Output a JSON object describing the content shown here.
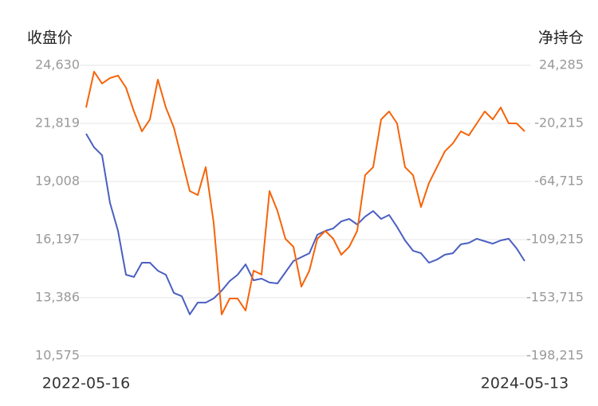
{
  "chart_data": {
    "type": "line",
    "y_label": "收盘价",
    "y2_label": "净持仓",
    "categories": [
      "2022-05-16",
      null,
      null,
      null,
      null,
      null,
      null,
      null,
      null,
      null,
      null,
      null,
      null,
      null,
      null,
      null,
      null,
      null,
      null,
      null,
      null,
      null,
      null,
      null,
      null,
      null,
      null,
      null,
      null,
      null,
      null,
      null,
      null,
      null,
      null,
      null,
      null,
      null,
      null,
      null,
      null,
      null,
      null,
      null,
      null,
      null,
      null,
      null,
      null,
      null,
      null,
      null,
      null,
      null,
      null,
      "2024-05-13"
    ],
    "series": [
      {
        "color": "#4a5fc1",
        "values": [
          21320,
          20660,
          20280,
          17970,
          16620,
          14500,
          14390,
          15080,
          15080,
          14690,
          14500,
          13620,
          13460,
          12580,
          13150,
          13150,
          13350,
          13730,
          14190,
          14500,
          15000,
          14230,
          14310,
          14120,
          14080,
          14620,
          15160,
          15350,
          15540,
          16430,
          16620,
          16740,
          17080,
          17200,
          16930,
          17310,
          17580,
          17200,
          17390,
          16810,
          16160,
          15660,
          15540,
          15080,
          15230,
          15470,
          15540,
          15970,
          16040,
          16240,
          16120,
          16000,
          16160,
          16240,
          15770,
          15160
        ]
      },
      {
        "color": "#f5640a",
        "axis": "y2",
        "values": [
          -8000,
          19400,
          10300,
          14500,
          16400,
          7200,
          -11100,
          -26300,
          -17200,
          13300,
          -8000,
          -23300,
          -47600,
          -72000,
          -75100,
          -53700,
          -96400,
          -166500,
          -154300,
          -154300,
          -163500,
          -133000,
          -136000,
          -72000,
          -87300,
          -108600,
          -114700,
          -145200,
          -133000,
          -108600,
          -102500,
          -108600,
          -120800,
          -114700,
          -102500,
          -59800,
          -53700,
          -17200,
          -11100,
          -20200,
          -53700,
          -59800,
          -84200,
          -65900,
          -53700,
          -41600,
          -35500,
          -26300,
          -29400,
          -20200,
          -11100,
          -17200,
          -8000,
          -20200,
          -20200,
          -26300
        ]
      }
    ],
    "ylim": [
      10575,
      24630
    ],
    "yticks": [
      {
        "value": 10575,
        "label": "10,575"
      },
      {
        "value": 13386,
        "label": "13,386"
      },
      {
        "value": 16197,
        "label": "16,197"
      },
      {
        "value": 19008,
        "label": "19,008"
      },
      {
        "value": 21819,
        "label": "21,819"
      },
      {
        "value": 24630,
        "label": "24,630"
      }
    ],
    "y2lim": [
      -198215,
      24285
    ],
    "y2ticks": [
      {
        "value": -198215,
        "label": "-198,215"
      },
      {
        "value": -153715,
        "label": "-153,715"
      },
      {
        "value": -109215,
        "label": "-109,215"
      },
      {
        "value": -64715,
        "label": "-64,715"
      },
      {
        "value": -20215,
        "label": "-20,215"
      },
      {
        "value": 24285,
        "label": "24,285"
      }
    ],
    "grid": true
  }
}
